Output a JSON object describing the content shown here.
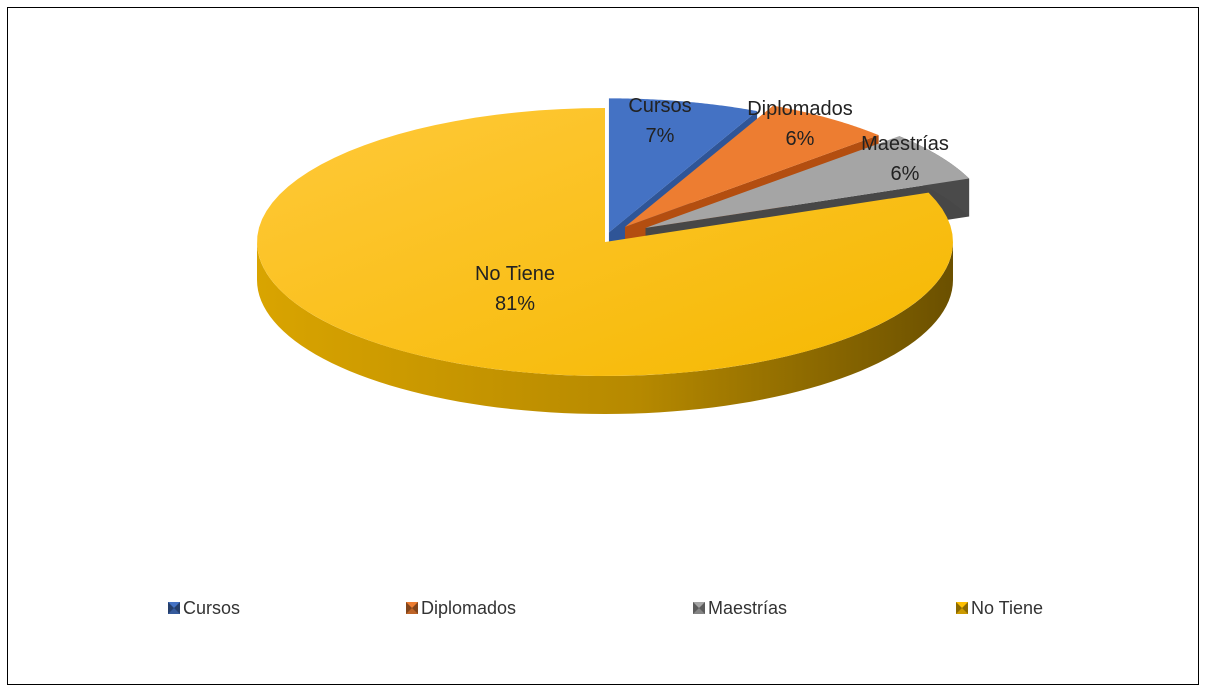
{
  "chart_data": {
    "type": "pie",
    "style": "3d-exploded",
    "categories": [
      "Cursos",
      "Diplomados",
      "Maestrías",
      "No Tiene"
    ],
    "values": [
      7,
      6,
      6,
      81
    ],
    "data_labels": [
      "7%",
      "6%",
      "6%",
      "81%"
    ],
    "colors": [
      "#4472c4",
      "#ed7d31",
      "#a5a5a5",
      "#ffc000"
    ],
    "title": "",
    "legend_position": "bottom"
  }
}
